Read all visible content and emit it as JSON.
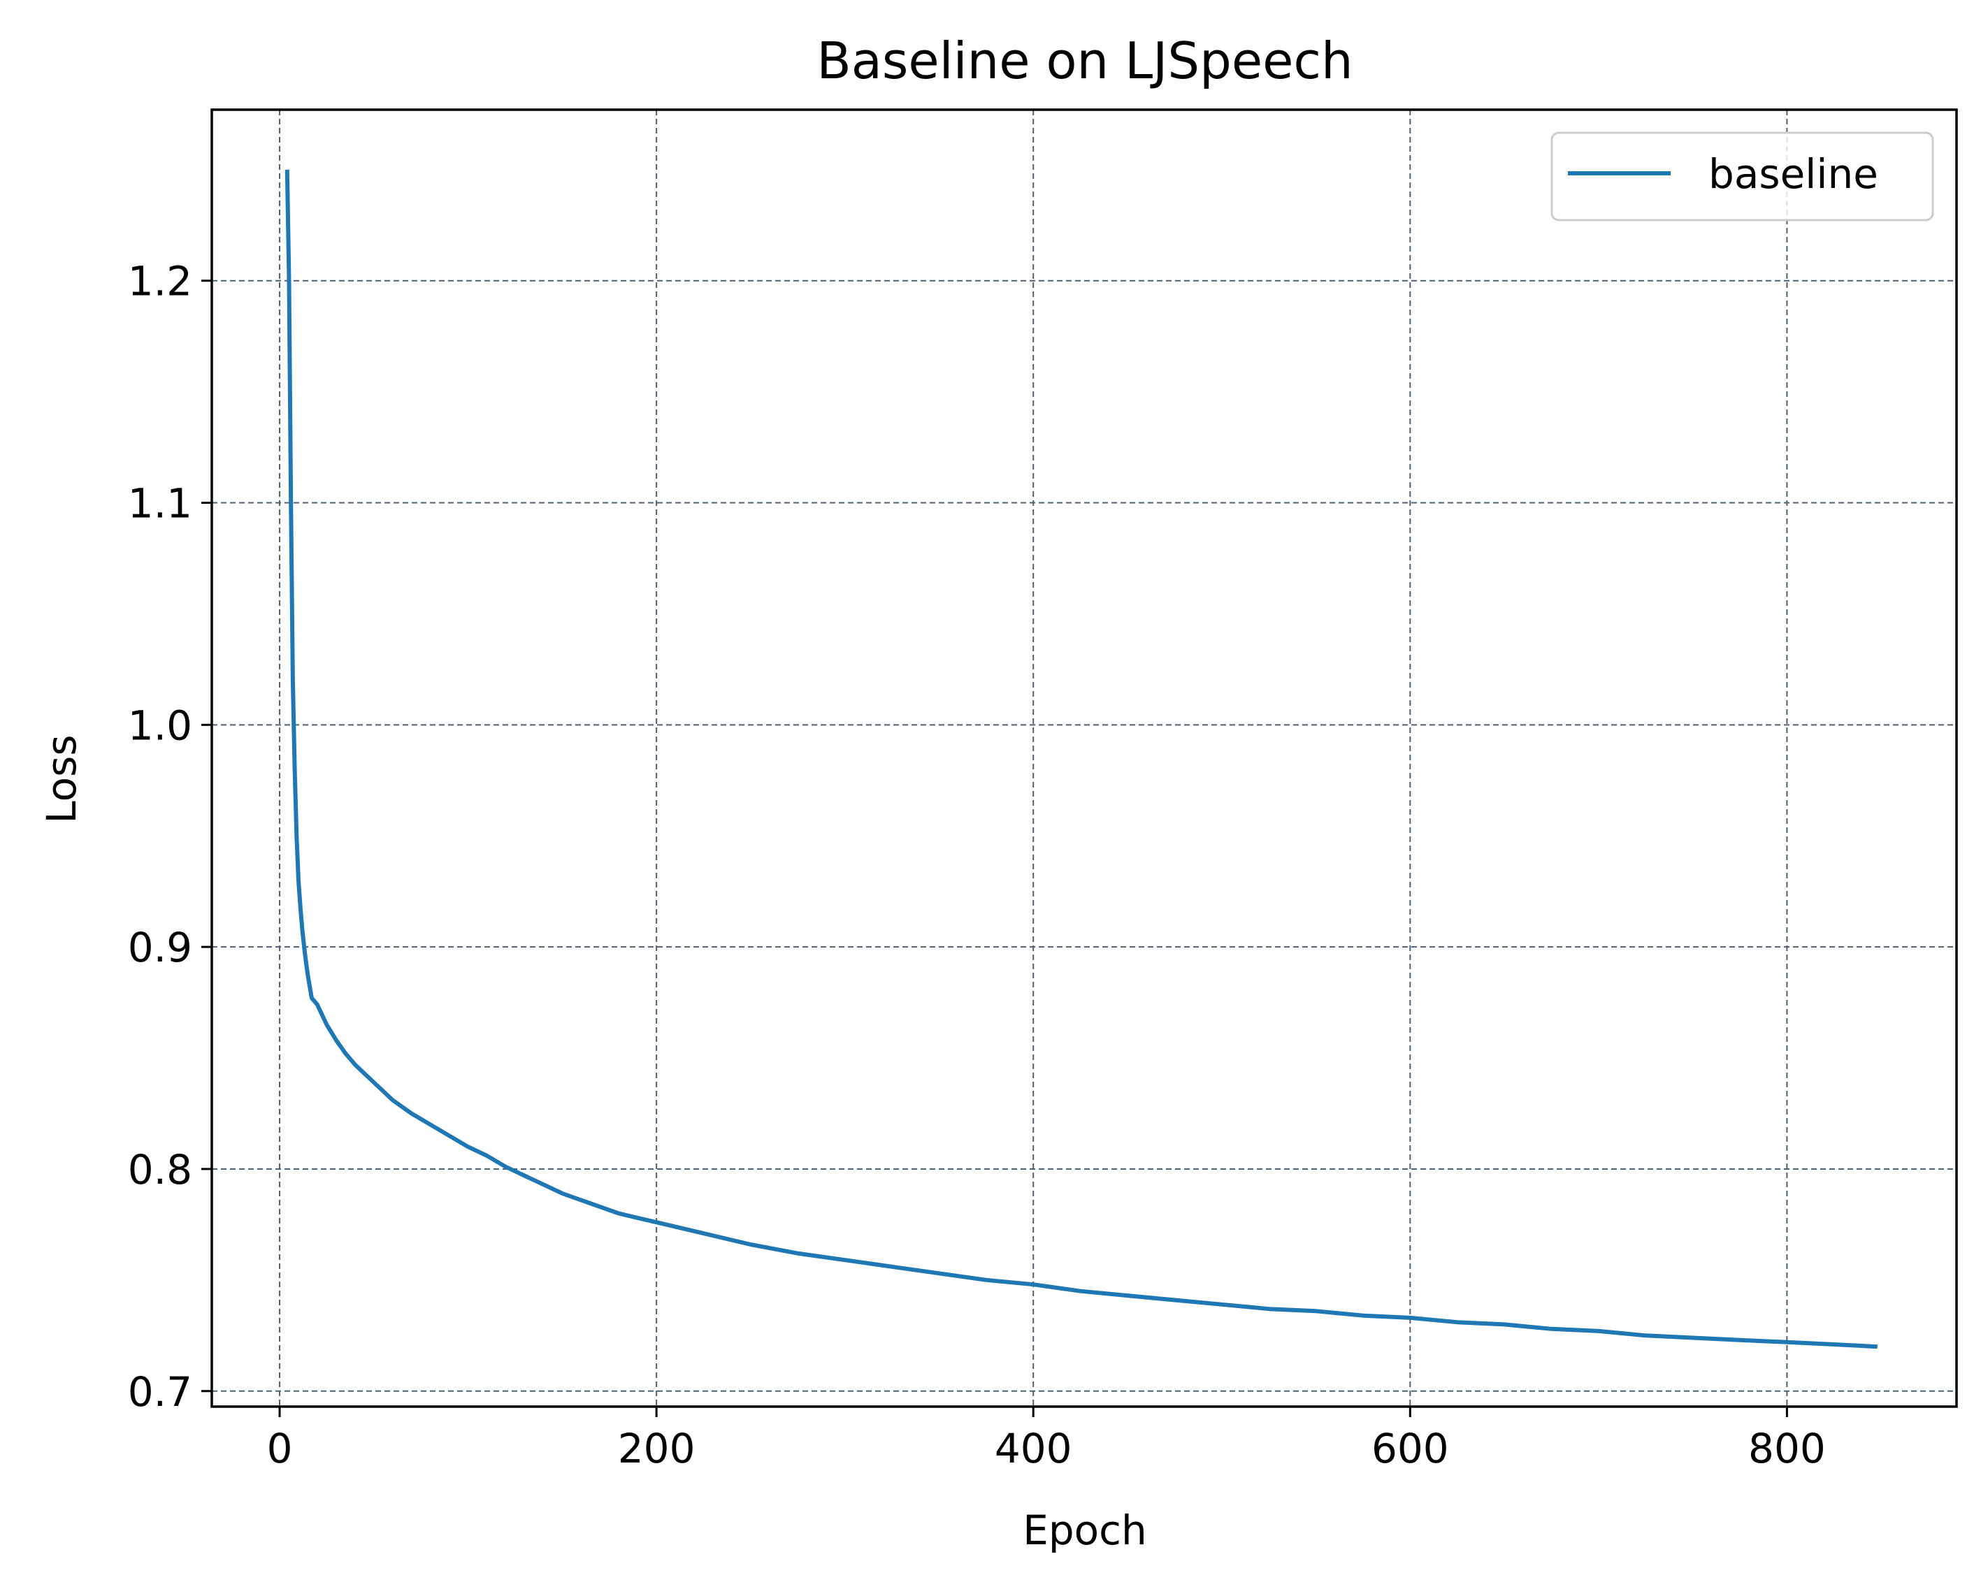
{
  "chart_data": {
    "type": "line",
    "title": "Baseline on LJSpeech",
    "xlabel": "Epoch",
    "ylabel": "Loss",
    "xlim": [
      -36,
      890
    ],
    "ylim": [
      0.693,
      1.277
    ],
    "xticks": [
      0,
      200,
      400,
      600,
      800
    ],
    "xtick_labels": [
      "0",
      "200",
      "400",
      "600",
      "800"
    ],
    "yticks": [
      0.7,
      0.8,
      0.9,
      1.0,
      1.1,
      1.2
    ],
    "ytick_labels": [
      "0.7",
      "0.8",
      "0.9",
      "1.0",
      "1.1",
      "1.2"
    ],
    "grid": true,
    "legend_position": "top-right",
    "colors": {
      "series": "#1f77b4",
      "grid": "#4f6073",
      "axes": "#000000",
      "legend_border": "#cccccc"
    },
    "series": [
      {
        "name": "baseline",
        "x": [
          4,
          5,
          6,
          7,
          8,
          9,
          10,
          11,
          12,
          13,
          14,
          15,
          16,
          17,
          18,
          19,
          20,
          25,
          30,
          35,
          40,
          45,
          50,
          60,
          70,
          80,
          90,
          100,
          110,
          120,
          130,
          140,
          150,
          160,
          170,
          180,
          190,
          200,
          225,
          250,
          275,
          300,
          325,
          350,
          375,
          400,
          425,
          450,
          475,
          500,
          525,
          550,
          575,
          600,
          625,
          650,
          675,
          700,
          725,
          750,
          775,
          800,
          825,
          848
        ],
        "y": [
          1.25,
          1.2,
          1.1,
          1.02,
          0.98,
          0.95,
          0.93,
          0.918,
          0.908,
          0.9,
          0.893,
          0.887,
          0.882,
          0.877,
          0.876,
          0.875,
          0.874,
          0.865,
          0.858,
          0.852,
          0.847,
          0.843,
          0.839,
          0.831,
          0.825,
          0.82,
          0.815,
          0.81,
          0.806,
          0.801,
          0.797,
          0.793,
          0.789,
          0.786,
          0.783,
          0.78,
          0.778,
          0.776,
          0.771,
          0.766,
          0.762,
          0.759,
          0.756,
          0.753,
          0.75,
          0.748,
          0.745,
          0.743,
          0.741,
          0.739,
          0.737,
          0.736,
          0.734,
          0.733,
          0.731,
          0.73,
          0.728,
          0.727,
          0.725,
          0.724,
          0.723,
          0.722,
          0.721,
          0.72
        ]
      }
    ]
  }
}
